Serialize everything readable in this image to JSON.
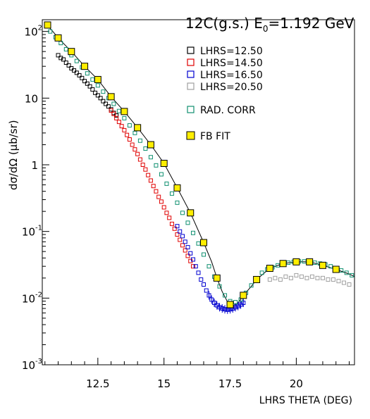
{
  "chart_data": {
    "type": "scatter",
    "title_parts": {
      "target": "12C(g.s.) E",
      "sub": "0",
      "energy": "=1.192 GeV"
    },
    "xlabel": "LHRS THETA (DEG)",
    "ylabel_parts": {
      "main": "dσ/dΩ (",
      "mu": "μ",
      "unit": "b/sr)"
    },
    "x_scale": "linear",
    "y_scale": "log",
    "xlim": [
      10.4,
      22.2
    ],
    "ylim": [
      0.001,
      150
    ],
    "x_ticks": [
      {
        "value": 12.5,
        "label": "12.5"
      },
      {
        "value": 15,
        "label": "15"
      },
      {
        "value": 17.5,
        "label": "17.5"
      },
      {
        "value": 20,
        "label": "20"
      }
    ],
    "y_ticks": [
      {
        "value": 100,
        "base": "10",
        "exp": "2"
      },
      {
        "value": 10,
        "base": "10",
        "exp": ""
      },
      {
        "value": 1,
        "base": "1",
        "exp": ""
      },
      {
        "value": 0.1,
        "base": "10",
        "exp": "-1"
      },
      {
        "value": 0.01,
        "base": "10",
        "exp": "-2"
      },
      {
        "value": 0.001,
        "base": "10",
        "exp": "-3"
      }
    ],
    "grid": false,
    "legend_position": "top-right",
    "series": [
      {
        "name": "LHRS=12.50",
        "marker": "open-square",
        "color": "#000000",
        "x": [
          11.0,
          11.1,
          11.2,
          11.3,
          11.4,
          11.5,
          11.6,
          11.7,
          11.8,
          11.9,
          12.0,
          12.1,
          12.2,
          12.3,
          12.4,
          12.5,
          12.6,
          12.7,
          12.8,
          12.9,
          13.0,
          13.1,
          13.2
        ],
        "y": [
          44,
          40,
          38,
          34,
          31,
          28,
          26,
          24,
          22,
          20,
          18,
          16.5,
          15,
          13.5,
          12,
          11,
          10,
          9,
          8.2,
          7.5,
          6.8,
          6.0,
          5.5
        ]
      },
      {
        "name": "LHRS=14.50",
        "marker": "open-square",
        "color": "#e00000",
        "x": [
          13.0,
          13.1,
          13.2,
          13.3,
          13.4,
          13.5,
          13.6,
          13.7,
          13.8,
          13.9,
          14.0,
          14.1,
          14.2,
          14.3,
          14.4,
          14.5,
          14.6,
          14.7,
          14.8,
          14.9,
          15.0,
          15.1,
          15.2,
          15.3,
          15.4,
          15.5,
          15.6,
          15.7,
          15.8,
          15.9,
          16.0,
          16.1
        ],
        "y": [
          6.5,
          5.8,
          5.0,
          4.4,
          3.8,
          3.3,
          2.8,
          2.4,
          2.0,
          1.7,
          1.45,
          1.2,
          1.0,
          0.85,
          0.7,
          0.58,
          0.48,
          0.4,
          0.33,
          0.28,
          0.23,
          0.19,
          0.16,
          0.13,
          0.11,
          0.09,
          0.075,
          0.062,
          0.052,
          0.043,
          0.036,
          0.03
        ]
      },
      {
        "name": "LHRS=16.50",
        "marker": "open-square",
        "color": "#0000d0",
        "x": [
          15.5,
          15.6,
          15.7,
          15.8,
          15.9,
          16.0,
          16.1,
          16.2,
          16.3,
          16.4,
          16.5,
          16.6,
          16.7,
          16.8,
          16.9,
          17.0,
          17.1,
          17.2,
          17.3,
          17.4,
          17.5,
          17.6,
          17.7,
          17.8,
          17.9,
          18.0
        ],
        "y": [
          0.12,
          0.1,
          0.085,
          0.07,
          0.058,
          0.047,
          0.038,
          0.03,
          0.024,
          0.019,
          0.016,
          0.013,
          0.011,
          0.0095,
          0.0085,
          0.0078,
          0.0073,
          0.007,
          0.0068,
          0.0067,
          0.0068,
          0.007,
          0.0073,
          0.0076,
          0.008,
          0.0085
        ]
      },
      {
        "name": "LHRS=20.50",
        "marker": "open-square",
        "color": "#a0a0a0",
        "x": [
          19.0,
          19.2,
          19.4,
          19.6,
          19.8,
          20.0,
          20.2,
          20.4,
          20.6,
          20.8,
          21.0,
          21.2,
          21.4,
          21.6,
          21.8,
          22.0
        ],
        "y": [
          0.019,
          0.02,
          0.019,
          0.021,
          0.02,
          0.022,
          0.021,
          0.02,
          0.021,
          0.02,
          0.02,
          0.019,
          0.019,
          0.018,
          0.017,
          0.016
        ]
      },
      {
        "name": "RAD. CORR",
        "marker": "open-square",
        "color": "#109070",
        "x": [
          10.7,
          10.9,
          11.1,
          11.3,
          11.5,
          11.7,
          11.9,
          12.1,
          12.3,
          12.5,
          12.7,
          12.9,
          13.1,
          13.3,
          13.5,
          13.7,
          13.9,
          14.1,
          14.3,
          14.5,
          14.7,
          14.9,
          15.1,
          15.3,
          15.5,
          15.7,
          15.9,
          16.1,
          16.3,
          16.5,
          16.7,
          16.9,
          17.1,
          17.3,
          17.5,
          17.7,
          17.9,
          18.1,
          18.3,
          18.5,
          18.7,
          18.9,
          19.1,
          19.3,
          19.5,
          19.7,
          19.9,
          20.1,
          20.3,
          20.5,
          20.7,
          20.9,
          21.1,
          21.3,
          21.5,
          21.7,
          21.9,
          22.1
        ],
        "y": [
          100,
          82,
          67,
          54,
          44,
          36,
          29,
          23.5,
          19,
          15.5,
          12.5,
          10,
          8.2,
          6.4,
          5,
          3.9,
          3,
          2.3,
          1.75,
          1.3,
          0.98,
          0.72,
          0.52,
          0.37,
          0.27,
          0.19,
          0.135,
          0.095,
          0.066,
          0.045,
          0.03,
          0.021,
          0.015,
          0.011,
          0.009,
          0.0087,
          0.0095,
          0.012,
          0.0155,
          0.0195,
          0.024,
          0.027,
          0.029,
          0.031,
          0.033,
          0.034,
          0.035,
          0.0355,
          0.0355,
          0.035,
          0.034,
          0.033,
          0.032,
          0.03,
          0.028,
          0.026,
          0.024,
          0.022
        ]
      },
      {
        "name": "FB FIT",
        "marker": "filled-square",
        "color": "#ffee00",
        "x": [
          10.6,
          11.0,
          11.5,
          12.0,
          12.5,
          13.0,
          13.5,
          14.0,
          14.5,
          15.0,
          15.5,
          16.0,
          16.5,
          17.0,
          17.5,
          18.0,
          18.5,
          19.0,
          19.5,
          20.0,
          20.5,
          21.0,
          21.5
        ],
        "y": [
          125,
          80,
          50,
          30,
          19,
          10.5,
          6.3,
          3.6,
          2.0,
          1.05,
          0.45,
          0.19,
          0.068,
          0.02,
          0.008,
          0.011,
          0.019,
          0.028,
          0.033,
          0.035,
          0.035,
          0.031,
          0.027
        ]
      }
    ],
    "fit_curve": {
      "x": [
        10.5,
        10.8,
        11.0,
        11.5,
        12.0,
        12.5,
        13.0,
        13.5,
        14.0,
        14.5,
        15.0,
        15.5,
        16.0,
        16.5,
        16.8,
        17.0,
        17.2,
        17.4,
        17.6,
        17.8,
        18.0,
        18.3,
        18.5,
        19.0,
        19.5,
        20.0,
        20.5,
        21.0,
        21.5,
        22.0,
        22.2
      ],
      "y": [
        135,
        100,
        80,
        50,
        30,
        19,
        10.5,
        6.3,
        3.6,
        2.0,
        1.05,
        0.45,
        0.19,
        0.068,
        0.035,
        0.02,
        0.0125,
        0.0088,
        0.0076,
        0.0085,
        0.011,
        0.015,
        0.019,
        0.028,
        0.033,
        0.035,
        0.035,
        0.031,
        0.027,
        0.023,
        0.021
      ]
    }
  }
}
